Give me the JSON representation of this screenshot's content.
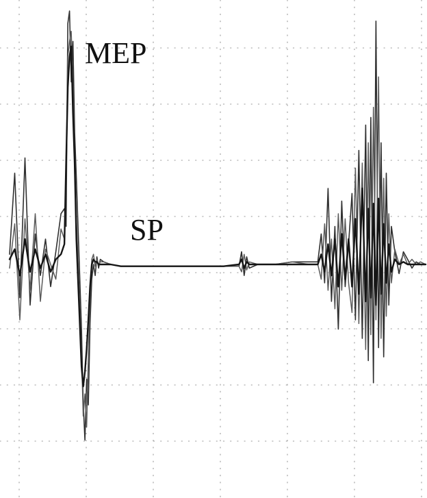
{
  "chart_data": {
    "type": "line",
    "title": "",
    "xlabel": "",
    "ylabel": "",
    "grid": true,
    "annotations": [
      {
        "id": "mep",
        "text": "MEP"
      },
      {
        "id": "sp",
        "text": "SP"
      }
    ],
    "baseline": 0,
    "ylim": [
      -1,
      1
    ],
    "series": [
      {
        "values": [
          [
            0,
            0.04
          ],
          [
            6,
            0.36
          ],
          [
            12,
            -0.18
          ],
          [
            18,
            0.42
          ],
          [
            24,
            -0.22
          ],
          [
            30,
            0.12
          ],
          [
            36,
            -0.06
          ],
          [
            42,
            0.1
          ],
          [
            48,
            -0.12
          ],
          [
            54,
            0.05
          ],
          [
            60,
            0.2
          ],
          [
            64,
            0.22
          ],
          [
            66,
            0.15
          ],
          [
            68,
            0.95
          ],
          [
            70,
            1.0
          ],
          [
            72,
            0.72
          ],
          [
            74,
            0.88
          ],
          [
            76,
            0.52
          ],
          [
            78,
            0.34
          ],
          [
            81,
            0.05
          ],
          [
            84,
            -0.35
          ],
          [
            86,
            -0.75
          ],
          [
            88,
            -0.95
          ],
          [
            90,
            -0.62
          ],
          [
            92,
            -0.76
          ],
          [
            94,
            -0.32
          ],
          [
            96,
            -0.08
          ],
          [
            98,
            0.0
          ],
          [
            100,
            -0.06
          ],
          [
            102,
            0.03
          ],
          [
            104,
            -0.02
          ],
          [
            106,
            0.02
          ],
          [
            110,
            0.01
          ],
          [
            118,
            0.0
          ],
          [
            130,
            -0.01
          ],
          [
            150,
            -0.01
          ],
          [
            165,
            -0.01
          ],
          [
            180,
            -0.01
          ],
          [
            200,
            -0.01
          ],
          [
            230,
            -0.01
          ],
          [
            250,
            -0.01
          ],
          [
            268,
            -0.01
          ],
          [
            271,
            0.05
          ],
          [
            274,
            -0.06
          ],
          [
            277,
            0.03
          ],
          [
            280,
            -0.02
          ],
          [
            290,
            0.0
          ],
          [
            310,
            0.0
          ],
          [
            330,
            0.01
          ],
          [
            350,
            0.01
          ],
          [
            360,
            0.01
          ],
          [
            364,
            0.12
          ],
          [
            368,
            -0.1
          ],
          [
            372,
            0.3
          ],
          [
            376,
            -0.2
          ],
          [
            380,
            0.15
          ],
          [
            384,
            -0.35
          ],
          [
            388,
            0.25
          ],
          [
            392,
            -0.12
          ],
          [
            396,
            0.08
          ],
          [
            400,
            0.28
          ],
          [
            404,
            -0.3
          ],
          [
            408,
            0.45
          ],
          [
            412,
            -0.4
          ],
          [
            416,
            0.55
          ],
          [
            419,
            -0.52
          ],
          [
            422,
            0.58
          ],
          [
            425,
            -0.64
          ],
          [
            428,
            0.96
          ],
          [
            431,
            -0.45
          ],
          [
            434,
            0.48
          ],
          [
            437,
            -0.5
          ],
          [
            440,
            0.36
          ],
          [
            443,
            -0.22
          ],
          [
            446,
            0.15
          ],
          [
            450,
            0.05
          ],
          [
            455,
            -0.05
          ],
          [
            460,
            0.05
          ],
          [
            465,
            0.02
          ],
          [
            470,
            -0.02
          ],
          [
            475,
            0.01
          ],
          [
            480,
            0.0
          ],
          [
            486,
            0.0
          ]
        ]
      },
      {
        "values": [
          [
            0,
            -0.02
          ],
          [
            6,
            0.16
          ],
          [
            12,
            -0.3
          ],
          [
            18,
            0.18
          ],
          [
            24,
            -0.14
          ],
          [
            30,
            0.2
          ],
          [
            36,
            -0.2
          ],
          [
            42,
            0.06
          ],
          [
            48,
            0.0
          ],
          [
            54,
            -0.08
          ],
          [
            60,
            0.14
          ],
          [
            64,
            0.1
          ],
          [
            66,
            0.3
          ],
          [
            68,
            0.82
          ],
          [
            70,
            0.88
          ],
          [
            72,
            0.92
          ],
          [
            74,
            0.7
          ],
          [
            76,
            0.42
          ],
          [
            78,
            0.18
          ],
          [
            81,
            -0.1
          ],
          [
            84,
            -0.48
          ],
          [
            86,
            -0.82
          ],
          [
            88,
            -0.7
          ],
          [
            90,
            -0.88
          ],
          [
            92,
            -0.5
          ],
          [
            94,
            -0.2
          ],
          [
            96,
            0.02
          ],
          [
            98,
            0.04
          ],
          [
            100,
            -0.01
          ],
          [
            102,
            0.02
          ],
          [
            104,
            0.0
          ],
          [
            106,
            0.01
          ],
          [
            110,
            0.01
          ],
          [
            118,
            0.0
          ],
          [
            130,
            -0.01
          ],
          [
            150,
            -0.01
          ],
          [
            165,
            -0.01
          ],
          [
            180,
            -0.01
          ],
          [
            200,
            -0.01
          ],
          [
            230,
            -0.01
          ],
          [
            250,
            -0.01
          ],
          [
            268,
            -0.01
          ],
          [
            271,
            -0.04
          ],
          [
            274,
            0.04
          ],
          [
            277,
            -0.03
          ],
          [
            280,
            0.01
          ],
          [
            290,
            0.0
          ],
          [
            310,
            0.0
          ],
          [
            330,
            0.01
          ],
          [
            350,
            0.0
          ],
          [
            360,
            0.0
          ],
          [
            364,
            -0.08
          ],
          [
            368,
            0.16
          ],
          [
            372,
            -0.14
          ],
          [
            376,
            0.1
          ],
          [
            380,
            -0.24
          ],
          [
            384,
            0.2
          ],
          [
            388,
            -0.14
          ],
          [
            392,
            0.18
          ],
          [
            396,
            -0.1
          ],
          [
            400,
            -0.26
          ],
          [
            404,
            0.38
          ],
          [
            408,
            -0.32
          ],
          [
            412,
            0.4
          ],
          [
            416,
            -0.46
          ],
          [
            419,
            0.48
          ],
          [
            422,
            -0.38
          ],
          [
            425,
            0.62
          ],
          [
            428,
            -0.3
          ],
          [
            431,
            0.74
          ],
          [
            434,
            -0.4
          ],
          [
            437,
            0.34
          ],
          [
            440,
            -0.28
          ],
          [
            443,
            0.2
          ],
          [
            446,
            -0.1
          ],
          [
            450,
            0.06
          ],
          [
            455,
            0.0
          ],
          [
            460,
            0.04
          ],
          [
            465,
            0.0
          ],
          [
            470,
            0.02
          ],
          [
            475,
            0.0
          ],
          [
            480,
            0.01
          ],
          [
            486,
            0.0
          ]
        ]
      },
      {
        "values": [
          [
            0,
            0.02
          ],
          [
            6,
            0.06
          ],
          [
            12,
            -0.06
          ],
          [
            18,
            0.1
          ],
          [
            24,
            -0.04
          ],
          [
            30,
            0.06
          ],
          [
            36,
            -0.02
          ],
          [
            42,
            0.04
          ],
          [
            48,
            -0.04
          ],
          [
            54,
            0.02
          ],
          [
            60,
            0.04
          ],
          [
            64,
            0.08
          ],
          [
            66,
            0.4
          ],
          [
            68,
            0.7
          ],
          [
            70,
            0.82
          ],
          [
            72,
            0.86
          ],
          [
            74,
            0.6
          ],
          [
            76,
            0.4
          ],
          [
            78,
            0.1
          ],
          [
            81,
            -0.2
          ],
          [
            84,
            -0.55
          ],
          [
            86,
            -0.66
          ],
          [
            88,
            -0.58
          ],
          [
            90,
            -0.46
          ],
          [
            92,
            -0.3
          ],
          [
            94,
            -0.12
          ],
          [
            96,
            0.0
          ],
          [
            98,
            0.02
          ],
          [
            100,
            0.01
          ],
          [
            102,
            0.01
          ],
          [
            104,
            0.0
          ],
          [
            106,
            0.0
          ],
          [
            110,
            0.0
          ],
          [
            118,
            0.0
          ],
          [
            130,
            -0.01
          ],
          [
            150,
            -0.01
          ],
          [
            165,
            -0.01
          ],
          [
            180,
            -0.01
          ],
          [
            200,
            -0.01
          ],
          [
            230,
            -0.01
          ],
          [
            250,
            -0.01
          ],
          [
            268,
            0.0
          ],
          [
            271,
            0.02
          ],
          [
            274,
            -0.02
          ],
          [
            277,
            0.01
          ],
          [
            280,
            0.0
          ],
          [
            290,
            0.0
          ],
          [
            310,
            0.0
          ],
          [
            330,
            0.0
          ],
          [
            350,
            0.0
          ],
          [
            360,
            0.0
          ],
          [
            364,
            0.04
          ],
          [
            368,
            -0.04
          ],
          [
            372,
            0.08
          ],
          [
            376,
            -0.06
          ],
          [
            380,
            0.1
          ],
          [
            384,
            -0.12
          ],
          [
            388,
            0.12
          ],
          [
            392,
            -0.08
          ],
          [
            396,
            0.1
          ],
          [
            400,
            -0.12
          ],
          [
            404,
            0.18
          ],
          [
            408,
            -0.16
          ],
          [
            412,
            0.3
          ],
          [
            416,
            -0.2
          ],
          [
            419,
            0.22
          ],
          [
            422,
            -0.18
          ],
          [
            425,
            0.24
          ],
          [
            428,
            -0.22
          ],
          [
            431,
            0.26
          ],
          [
            434,
            -0.16
          ],
          [
            437,
            0.16
          ],
          [
            440,
            -0.1
          ],
          [
            443,
            0.08
          ],
          [
            446,
            -0.04
          ],
          [
            450,
            0.02
          ],
          [
            455,
            0.0
          ],
          [
            460,
            0.01
          ],
          [
            465,
            0.0
          ],
          [
            470,
            0.0
          ],
          [
            475,
            0.0
          ],
          [
            480,
            0.0
          ],
          [
            486,
            0.0
          ]
        ]
      }
    ]
  },
  "colors": {
    "traces": [
      "#303030",
      "#5a5a5a",
      "#151515"
    ],
    "grid": "#9a9a9a",
    "background": "#ffffff"
  }
}
